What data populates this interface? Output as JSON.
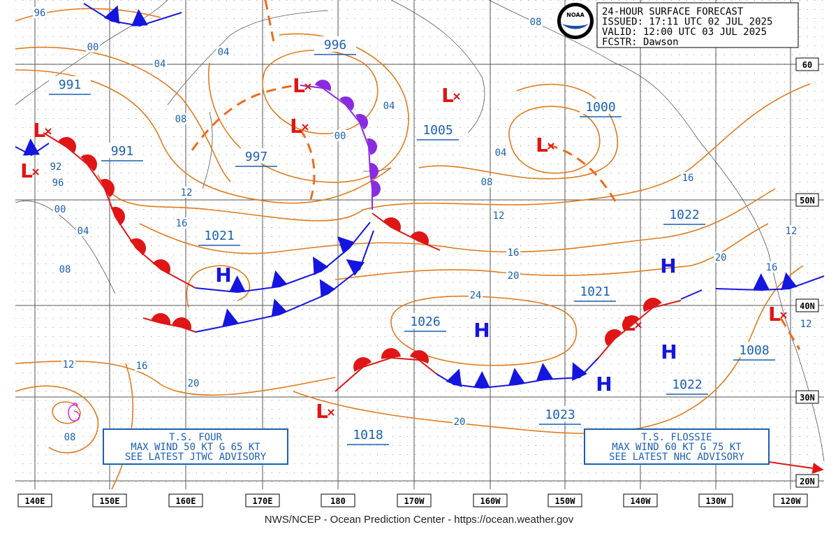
{
  "header": {
    "lines": [
      "24-HOUR SURFACE FORECAST",
      "ISSUED:  17:11 UTC 02 JUL 2025",
      "VALID:   12:00 UTC 03 JUL 2025",
      "FCSTR:   Dawson"
    ],
    "logo": "NOAA"
  },
  "longitude_labels": [
    "140E",
    "150E",
    "160E",
    "170E",
    "180",
    "170W",
    "160W",
    "150W",
    "140W",
    "130W",
    "120W"
  ],
  "latitude_labels": [
    "60",
    "50N",
    "40N",
    "30N",
    "20N"
  ],
  "pressure_labels": [
    "991",
    "991",
    "997",
    "996",
    "1005",
    "1000",
    "1021",
    "1022",
    "1021",
    "1026",
    "1008",
    "1022",
    "1023",
    "1018"
  ],
  "highs": [
    "H",
    "H",
    "H",
    "H",
    "H"
  ],
  "lows": [
    "L",
    "L",
    "L",
    "L",
    "L",
    "L",
    "L",
    "L",
    "L"
  ],
  "isobar_labels": [
    "96",
    "00",
    "04",
    "04",
    "08",
    "04",
    "00",
    "08",
    "04",
    "08",
    "12",
    "16",
    "12",
    "16",
    "20",
    "24",
    "16",
    "20",
    "16",
    "12",
    "12",
    "92",
    "96",
    "00",
    "04",
    "08",
    "12",
    "16",
    "20",
    "20",
    "08"
  ],
  "advisories": [
    [
      "T.S. FOUR",
      "MAX WIND 50 KT G 65 KT",
      "SEE LATEST JTWC ADVISORY"
    ],
    [
      "T.S. FLOSSIE",
      "MAX WIND 60 KT G 75 KT",
      "SEE LATEST NHC ADVISORY"
    ]
  ],
  "footer": "NWS/NCEP - Ocean Prediction Center - https://ocean.weather.gov"
}
